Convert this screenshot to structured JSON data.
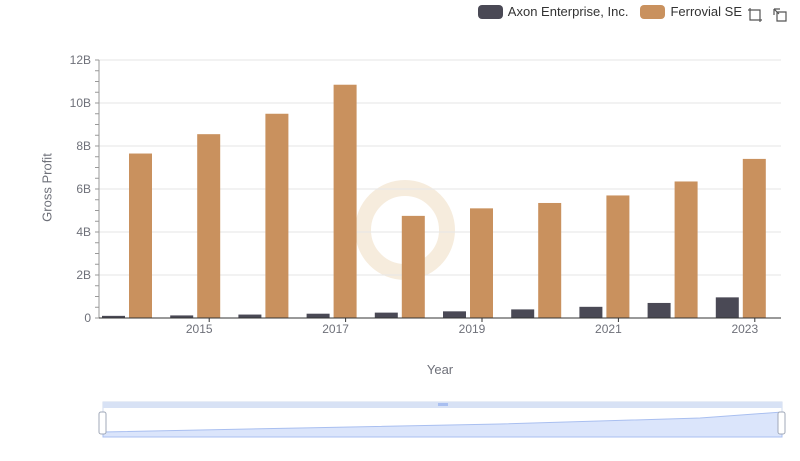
{
  "legend": {
    "items": [
      {
        "label": "Axon Enterprise, Inc.",
        "color": "#4a4955"
      },
      {
        "label": "Ferrovial SE",
        "color": "#c9915e"
      }
    ]
  },
  "toolbox": {
    "zoom_icon": "zoom-icon",
    "restore_icon": "restore-icon"
  },
  "chart_data": {
    "type": "bar",
    "xlabel": "Year",
    "ylabel": "Gross Profit",
    "ylim": [
      0,
      12000000000
    ],
    "yticks": [
      "0",
      "2B",
      "4B",
      "6B",
      "8B",
      "10B",
      "12B"
    ],
    "categories": [
      "2014",
      "2015",
      "2016",
      "2017",
      "2018",
      "2019",
      "2020",
      "2021",
      "2022",
      "2023"
    ],
    "xtick_labels": [
      "2015",
      "2017",
      "2019",
      "2021",
      "2023"
    ],
    "series": [
      {
        "name": "Axon Enterprise, Inc.",
        "color": "#4a4955",
        "values": [
          100000000,
          120000000,
          160000000,
          200000000,
          250000000,
          310000000,
          400000000,
          520000000,
          700000000,
          960000000
        ]
      },
      {
        "name": "Ferrovial SE",
        "color": "#c9915e",
        "values": [
          7650000000,
          8550000000,
          9500000000,
          10850000000,
          4750000000,
          5100000000,
          5350000000,
          5700000000,
          6350000000,
          7400000000
        ]
      }
    ],
    "grid": true,
    "legend_position": "top-right",
    "datazoom": {
      "start": 0,
      "end": 100
    }
  }
}
